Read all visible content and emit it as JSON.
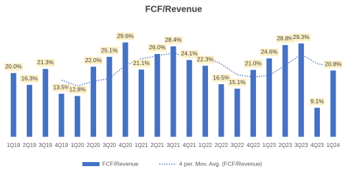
{
  "chart_data": {
    "type": "bar",
    "title": "FCF/Revenue",
    "categories": [
      "1Q19",
      "2Q19",
      "3Q19",
      "4Q19",
      "1Q20",
      "2Q20",
      "3Q20",
      "4Q20",
      "1Q21",
      "2Q21",
      "3Q21",
      "4Q21",
      "1Q22",
      "2Q22",
      "3Q22",
      "4Q22",
      "1Q23",
      "2Q23",
      "3Q23",
      "4Q23",
      "1Q24"
    ],
    "series": [
      {
        "name": "FCF/Revenue",
        "color": "#4472c4",
        "values": [
          20.0,
          16.3,
          21.3,
          13.5,
          12.8,
          22.0,
          25.1,
          29.6,
          21.1,
          26.0,
          28.4,
          24.1,
          22.3,
          16.5,
          15.1,
          21.0,
          24.6,
          28.8,
          29.3,
          9.1,
          20.8
        ],
        "value_labels": [
          "20.0%",
          "16.3%",
          "21.3%",
          "13.5%",
          "12.8%",
          "22.0%",
          "25.1%",
          "29.6%",
          "21.1%",
          "26.0%",
          "28.4%",
          "24.1%",
          "22.3%",
          "16.5%",
          "15.1%",
          "21.0%",
          "24.6%",
          "28.8%",
          "29.3%",
          "9.1%",
          "20.8%"
        ]
      },
      {
        "name": "4 per. Mov. Avg. (FCF/Revenue)",
        "color": "#4472c4",
        "type": "line",
        "dash": "dotted",
        "values": [
          null,
          null,
          null,
          17.775,
          15.975,
          17.4,
          18.35,
          22.375,
          24.45,
          25.45,
          26.275,
          24.9,
          25.2,
          22.825,
          19.5,
          18.725,
          19.3,
          22.375,
          25.925,
          22.95,
          22
        ]
      }
    ],
    "ylim": [
      0,
      35
    ],
    "grid": false,
    "legend": "bottom"
  }
}
